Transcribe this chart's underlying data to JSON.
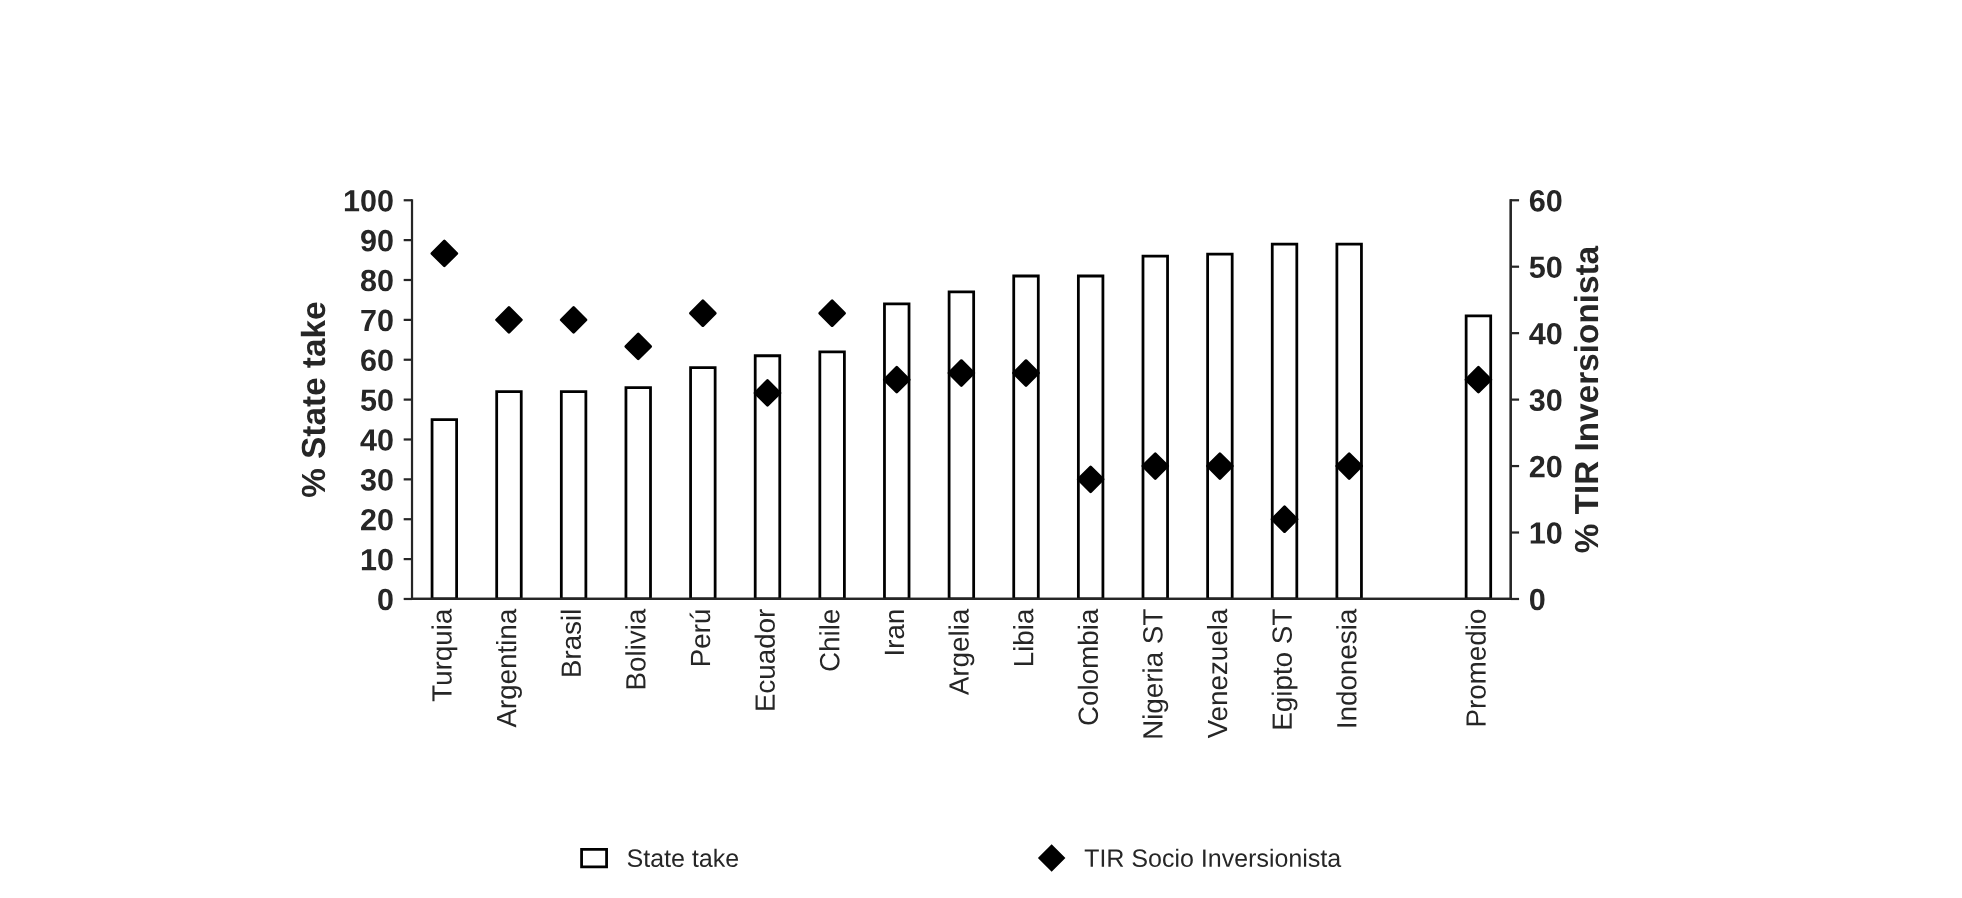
{
  "chart_data": {
    "type": "bar",
    "ylabel": "% State take",
    "y2label": "% TIR Inversionista",
    "categories": [
      "Turquia",
      "Argentina",
      "Brasil",
      "Bolivia",
      "Perú",
      "Ecuador",
      "Chile",
      "Iran",
      "Argelia",
      "Libia",
      "Colombia",
      "Nigeria ST",
      "Venezuela",
      "Egipto ST",
      "Indonesia",
      null,
      "Promedio"
    ],
    "series": [
      {
        "name": "State take",
        "color": "#ffffff",
        "values": [
          45,
          52,
          52,
          53,
          58,
          61,
          62,
          74,
          77,
          81,
          81,
          86,
          86.5,
          89,
          89,
          null,
          71
        ]
      },
      {
        "name": "TIR Socio Inversionista",
        "type": "scatter",
        "axis": "y2",
        "color": "#000000",
        "marker": "diamond",
        "values": [
          52,
          42,
          42,
          38,
          43,
          31,
          43,
          33,
          34,
          34,
          18,
          20,
          20,
          12,
          20,
          null,
          33
        ]
      }
    ],
    "ylim": [
      0,
      100
    ],
    "yticks": [
      0,
      10,
      20,
      30,
      40,
      50,
      60,
      70,
      80,
      90,
      100
    ],
    "y2lim": [
      0,
      60
    ],
    "y2ticks": [
      0,
      10,
      20,
      30,
      40,
      50,
      60
    ],
    "grid": false,
    "legend": "bottom"
  }
}
